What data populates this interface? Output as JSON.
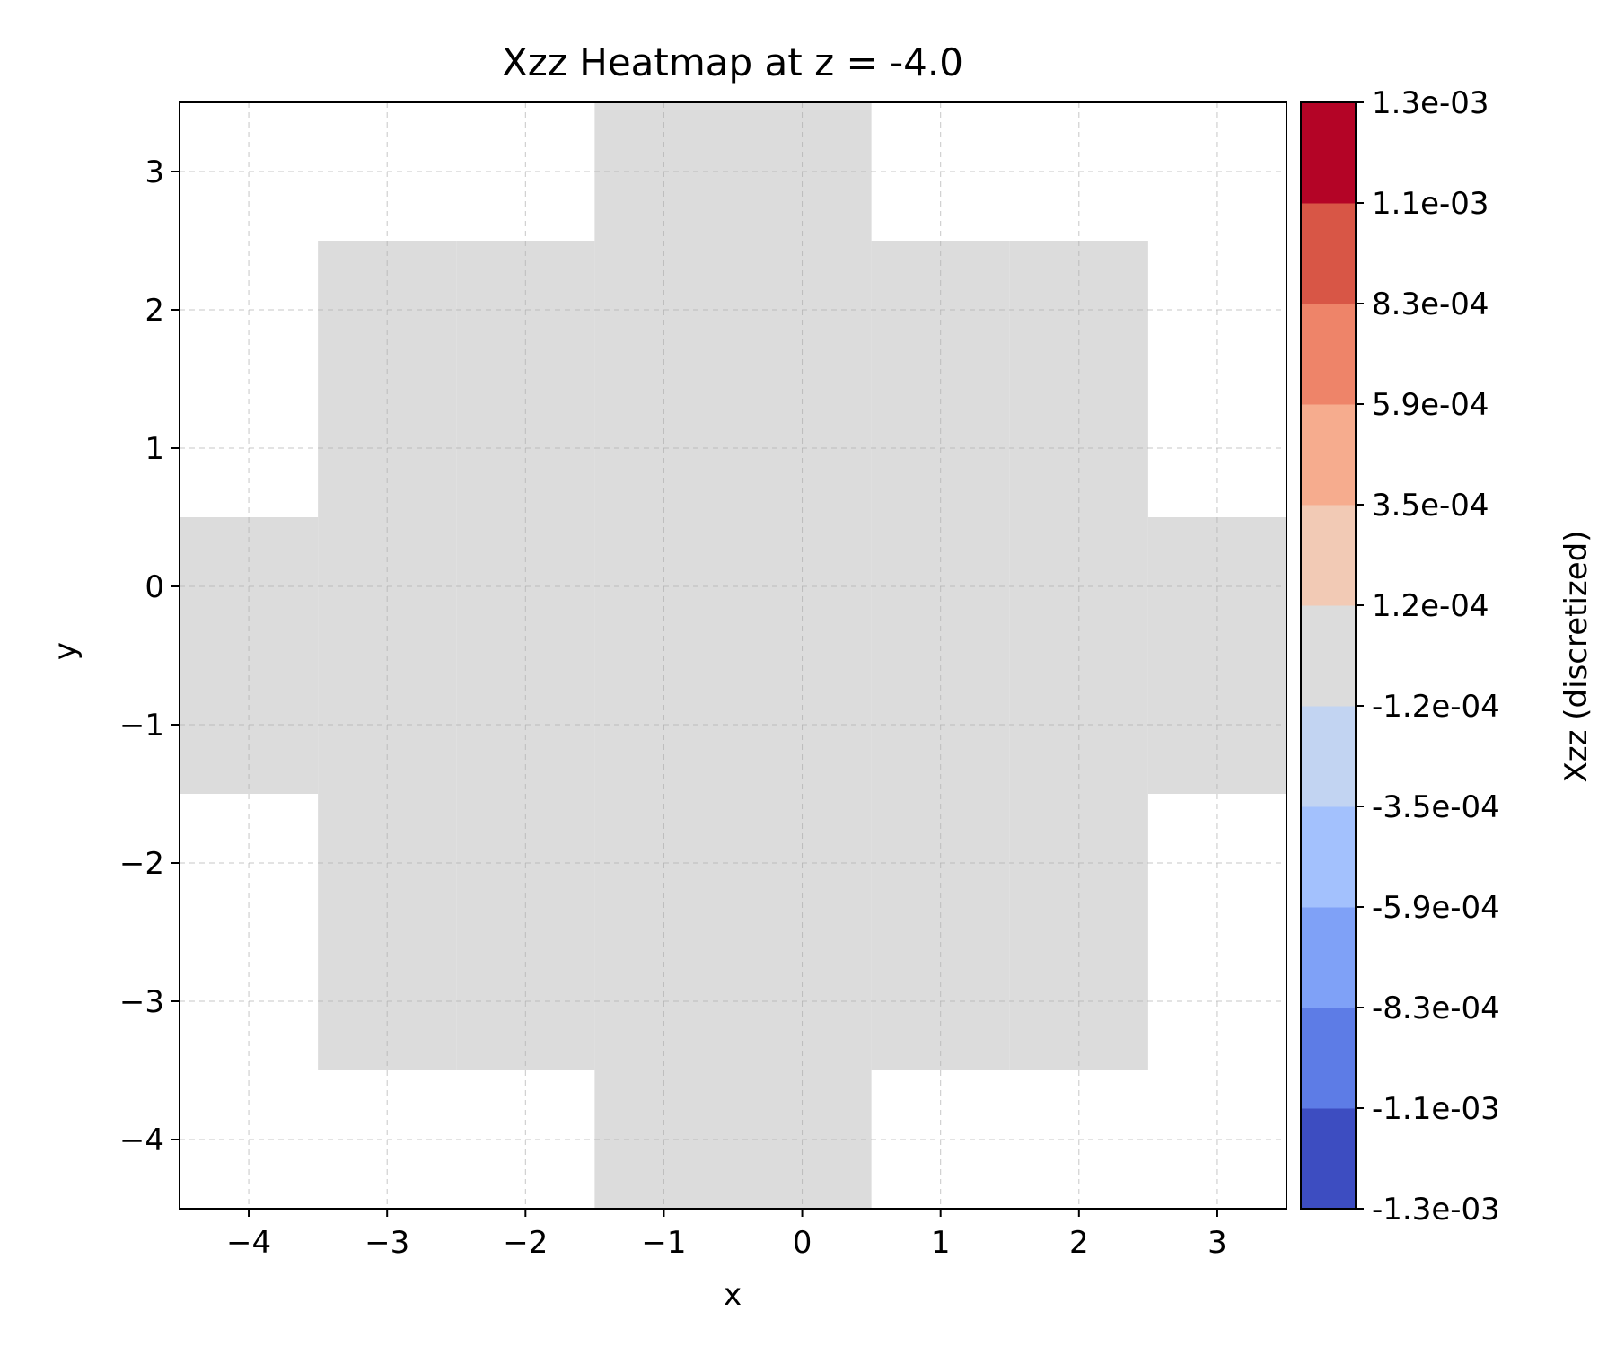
{
  "chart_data": {
    "type": "heatmap",
    "title": "Xzz Heatmap at z = -4.0",
    "xlabel": "x",
    "ylabel": "y",
    "xlim": [
      -4.5,
      3.5
    ],
    "ylim": [
      -4.5,
      3.5
    ],
    "xticks": [
      -4,
      -3,
      -2,
      -1,
      0,
      1,
      2,
      3
    ],
    "yticks": [
      -4,
      -3,
      -2,
      -1,
      0,
      1,
      2,
      3
    ],
    "xtick_labels": [
      "−4",
      "−3",
      "−2",
      "−1",
      "0",
      "1",
      "2",
      "3"
    ],
    "ytick_labels": [
      "−4",
      "−3",
      "−2",
      "−1",
      "0",
      "1",
      "2",
      "3"
    ],
    "grid": true,
    "cell_size": 1,
    "cell_color": "#dcdcdc",
    "rows": [
      {
        "y": 3,
        "x_from": -1,
        "x_to": 0
      },
      {
        "y": 2,
        "x_from": -3,
        "x_to": 2
      },
      {
        "y": 1,
        "x_from": -3,
        "x_to": 2
      },
      {
        "y": 0,
        "x_from": -4,
        "x_to": 3
      },
      {
        "y": -1,
        "x_from": -4,
        "x_to": 3
      },
      {
        "y": -2,
        "x_from": -3,
        "x_to": 2
      },
      {
        "y": -3,
        "x_from": -3,
        "x_to": 2
      },
      {
        "y": -4,
        "x_from": -1,
        "x_to": 0
      }
    ],
    "value_in_cells": "between -1.2e-04 and 1.2e-04",
    "colorbar": {
      "label": "Xzz (discretized)",
      "boundaries": [
        -0.0013,
        -0.0011,
        -0.00083,
        -0.00059,
        -0.00035,
        -0.00012,
        0.00012,
        0.00035,
        0.00059,
        0.00083,
        0.0011,
        0.0013
      ],
      "tick_labels": [
        "-1.3e-03",
        "-1.1e-03",
        "-8.3e-04",
        "-5.9e-04",
        "-3.5e-04",
        "-1.2e-04",
        "1.2e-04",
        "3.5e-04",
        "5.9e-04",
        "8.3e-04",
        "1.1e-03",
        "1.3e-03"
      ],
      "colors": [
        "#3d4dc1",
        "#5d7ce6",
        "#7fa1f7",
        "#a3c1fd",
        "#c2d4f2",
        "#dcdcdc",
        "#f2cab5",
        "#f6ac8e",
        "#ee8469",
        "#d85646",
        "#b40426"
      ]
    }
  }
}
